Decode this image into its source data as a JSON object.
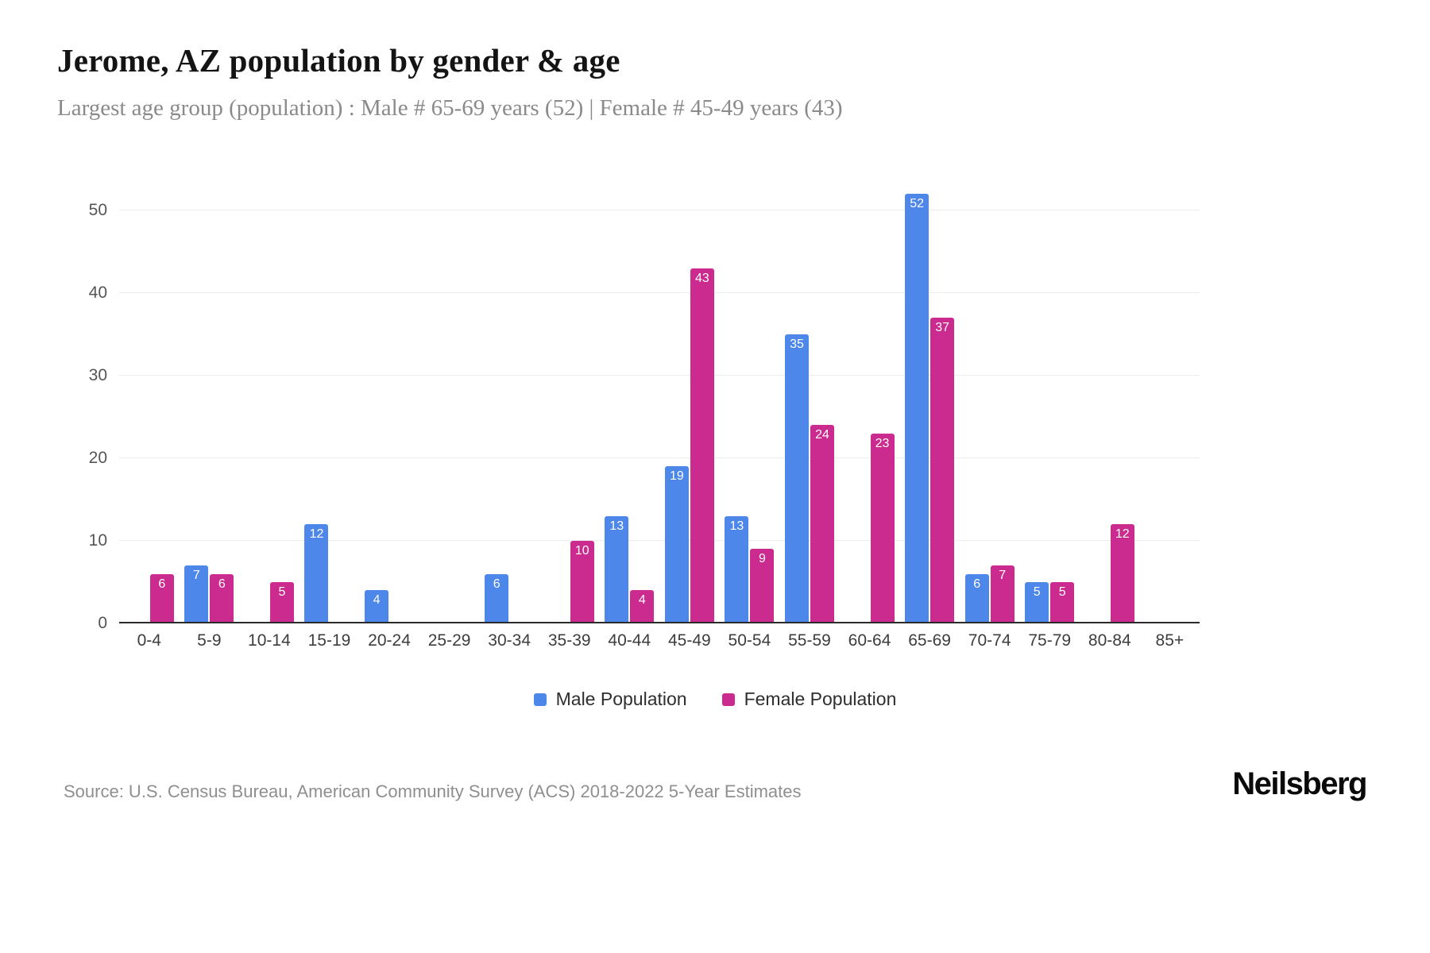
{
  "header": {
    "title": "Jerome, AZ population by gender & age",
    "subtitle": "Largest age group (population) : Male # 65-69 years (52) | Female # 45-49 years (43)"
  },
  "chart_data": {
    "type": "bar",
    "title": "Jerome, AZ population by gender & age",
    "xlabel": "",
    "ylabel": "",
    "categories": [
      "0-4",
      "5-9",
      "10-14",
      "15-19",
      "20-24",
      "25-29",
      "30-34",
      "35-39",
      "40-44",
      "45-49",
      "50-54",
      "55-59",
      "60-64",
      "65-69",
      "70-74",
      "75-79",
      "80-84",
      "85+"
    ],
    "series": [
      {
        "name": "Male Population",
        "key": "male",
        "color": "#4e87ea",
        "values": [
          0,
          7,
          0,
          12,
          4,
          0,
          6,
          0,
          13,
          19,
          13,
          35,
          0,
          52,
          6,
          5,
          0,
          0
        ]
      },
      {
        "name": "Female Population",
        "key": "female",
        "color": "#cb2a8e",
        "values": [
          6,
          6,
          5,
          0,
          0,
          0,
          0,
          10,
          4,
          43,
          9,
          24,
          23,
          37,
          7,
          5,
          12,
          0
        ]
      }
    ],
    "ylim": [
      0,
      50
    ],
    "yticks": [
      0,
      10,
      20,
      30,
      40,
      50
    ],
    "grid": true,
    "legend_position": "bottom"
  },
  "footer": {
    "source": "Source: U.S. Census Bureau, American Community Survey (ACS) 2018-2022 5-Year Estimates",
    "brand": "Neilsberg"
  }
}
